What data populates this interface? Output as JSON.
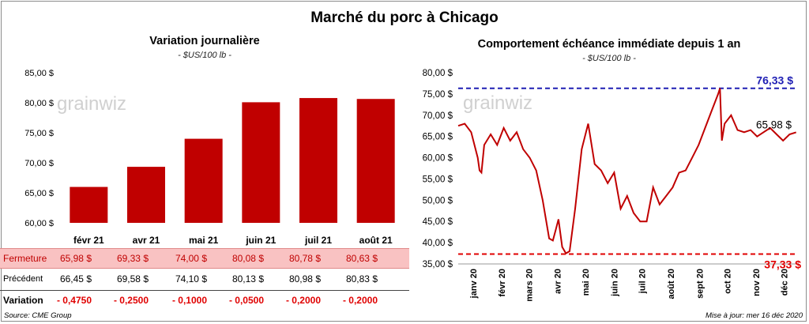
{
  "main_title": "Marché du porc à Chicago",
  "left_chart": {
    "title": "Variation  journalière",
    "unit": "- $US/100 lb -",
    "watermark": "grainwiz",
    "bar_color": "#c00000"
  },
  "right_chart": {
    "title": "Comportement  échéance immédiate depuis 1 an",
    "unit": "- $US/100 lb -",
    "watermark": "grainwiz",
    "line_color": "#c00000",
    "max_color": "#1f1fb4",
    "min_color": "#e00000",
    "max_label": "76,33 $",
    "min_label": "37,33 $",
    "last_label": "65,98 $"
  },
  "table": {
    "rows": [
      {
        "label": "Fermeture",
        "values": [
          "65,98  $",
          "69,33  $",
          "74,00  $",
          "80,08  $",
          "80,78  $",
          "80,63  $"
        ]
      },
      {
        "label": "Précédent",
        "values": [
          "66,45  $",
          "69,58  $",
          "74,10  $",
          "80,13  $",
          "80,98  $",
          "80,83  $"
        ]
      },
      {
        "label": "Variation",
        "values": [
          "- 0,4750",
          "- 0,2500",
          "- 0,1000",
          "- 0,0500",
          "- 0,2000",
          "- 0,2000"
        ]
      }
    ]
  },
  "footer": {
    "source": "Source: CME Group",
    "updated": "Mise à jour: mer 16 déc 2020"
  },
  "chart_data": [
    {
      "type": "bar",
      "title": "Variation  journalière",
      "ylabel": "- $US/100 lb -",
      "categories": [
        "févr 21",
        "avr 21",
        "mai 21",
        "juin 21",
        "juil 21",
        "août 21"
      ],
      "values": [
        65.98,
        69.33,
        74.0,
        80.08,
        80.78,
        80.63
      ],
      "ylim": [
        60,
        85
      ],
      "yticks": [
        "60,00 $",
        "65,00 $",
        "70,00 $",
        "75,00 $",
        "80,00 $",
        "85,00 $"
      ],
      "grid": false
    },
    {
      "type": "line",
      "title": "Comportement  échéance immédiate depuis 1 an",
      "ylabel": "- $US/100 lb -",
      "ylim": [
        35,
        80
      ],
      "yticks": [
        "35,00 $",
        "40,00 $",
        "45,00 $",
        "50,00 $",
        "55,00 $",
        "60,00 $",
        "65,00 $",
        "70,00 $",
        "75,00 $",
        "80,00 $"
      ],
      "xticks": [
        "janv 20",
        "févr 20",
        "mars 20",
        "avr 20",
        "mai 20",
        "juin 20",
        "juil 20",
        "août 20",
        "sept 20",
        "oct 20",
        "nov 20",
        "déc 20"
      ],
      "max": 76.33,
      "min": 37.33,
      "last": 65.98,
      "x": [
        "2019-12-16",
        "2019-12-23",
        "2019-12-30",
        "2020-01-06",
        "2020-01-08",
        "2020-01-10",
        "2020-01-13",
        "2020-01-20",
        "2020-01-27",
        "2020-02-03",
        "2020-02-10",
        "2020-02-17",
        "2020-02-24",
        "2020-03-02",
        "2020-03-09",
        "2020-03-16",
        "2020-03-23",
        "2020-03-27",
        "2020-03-30",
        "2020-04-02",
        "2020-04-06",
        "2020-04-10",
        "2020-04-14",
        "2020-04-20",
        "2020-04-27",
        "2020-05-04",
        "2020-05-11",
        "2020-05-18",
        "2020-05-25",
        "2020-06-01",
        "2020-06-08",
        "2020-06-15",
        "2020-06-22",
        "2020-06-29",
        "2020-07-06",
        "2020-07-13",
        "2020-07-20",
        "2020-07-27",
        "2020-08-03",
        "2020-08-10",
        "2020-08-17",
        "2020-08-24",
        "2020-08-31",
        "2020-09-07",
        "2020-09-14",
        "2020-09-21",
        "2020-09-23",
        "2020-09-25",
        "2020-09-28",
        "2020-10-05",
        "2020-10-12",
        "2020-10-19",
        "2020-10-26",
        "2020-11-02",
        "2020-11-09",
        "2020-11-16",
        "2020-11-23",
        "2020-11-30",
        "2020-12-07",
        "2020-12-14"
      ],
      "values": [
        67.5,
        68.0,
        66.0,
        60.0,
        57.0,
        56.5,
        63.0,
        65.5,
        63.0,
        67.0,
        64.0,
        66.0,
        62.0,
        60.0,
        57.0,
        50.0,
        41.0,
        40.5,
        43.0,
        45.5,
        39.0,
        37.5,
        38.0,
        48.0,
        62.0,
        68.0,
        58.5,
        57.0,
        54.0,
        56.5,
        48.0,
        51.0,
        47.0,
        45.0,
        45.0,
        53.0,
        49.0,
        51.0,
        53.0,
        56.5,
        57.0,
        60.0,
        63.0,
        67.0,
        71.0,
        75.0,
        76.33,
        64.0,
        68.0,
        70.0,
        66.5,
        66.0,
        66.5,
        65.0,
        66.0,
        67.0,
        65.5,
        64.0,
        65.5,
        65.98
      ]
    }
  ]
}
